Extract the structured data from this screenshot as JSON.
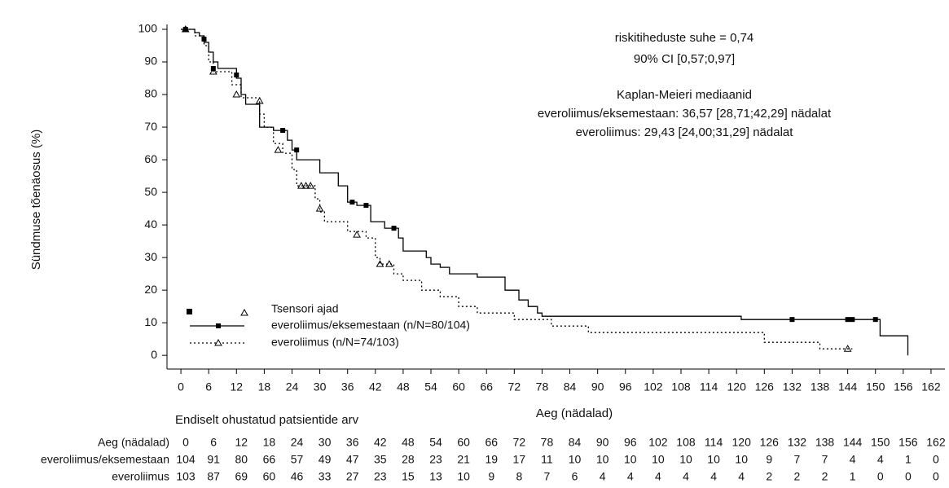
{
  "chart_data": {
    "type": "line",
    "y_label": "Sündmuse tõenäosus (%)",
    "x_label": "Aeg (nädalad)",
    "xlim": [
      -3,
      165
    ],
    "ylim": [
      -4.2,
      101.5
    ],
    "xticks": [
      0,
      6,
      12,
      18,
      24,
      30,
      36,
      42,
      48,
      54,
      60,
      66,
      72,
      78,
      84,
      90,
      96,
      102,
      108,
      114,
      120,
      126,
      132,
      138,
      144,
      150,
      156,
      162
    ],
    "yticks": [
      0,
      10,
      20,
      30,
      40,
      50,
      60,
      70,
      80,
      90,
      100
    ],
    "annotations": [
      "riskitiheduste suhe = 0,74",
      "90% CI [0,57;0,97]",
      "Kaplan-Meieri mediaanid",
      "everoliimus/eksemestaan: 36,57 [28,71;42,29] nädalat",
      "everoliimus: 29,43 [24,00;31,29] nädalat"
    ],
    "legend_title": "Tsensori ajad",
    "series": [
      {
        "name": "everoliimus/eksemestaan (n/N=80/104)",
        "color": "#000000",
        "dashed": false,
        "marker": "square",
        "x": [
          0,
          3,
          3,
          4,
          4,
          5,
          5,
          6,
          6,
          7,
          7,
          8,
          8,
          12,
          12,
          13,
          13,
          14,
          14,
          17,
          17,
          20,
          20,
          23,
          23,
          24,
          24,
          25,
          25,
          30,
          30,
          34,
          34,
          36,
          36,
          38,
          38,
          41,
          41,
          44,
          44,
          47,
          47,
          48,
          48,
          53,
          53,
          54,
          54,
          56,
          56,
          58,
          58,
          64,
          64,
          70,
          70,
          73,
          73,
          75,
          75,
          77,
          77,
          78,
          78,
          121,
          121,
          151,
          151,
          157,
          157
        ],
        "values": [
          100,
          100,
          99,
          99,
          98,
          98,
          96,
          96,
          93,
          93,
          90,
          90,
          88,
          88,
          85,
          85,
          80,
          80,
          77,
          77,
          70,
          70,
          69,
          69,
          66,
          66,
          63,
          63,
          60,
          60,
          56,
          56,
          52,
          52,
          47,
          47,
          46,
          46,
          41,
          41,
          39,
          39,
          36,
          36,
          32,
          32,
          30,
          30,
          28,
          28,
          27,
          27,
          25,
          25,
          24,
          24,
          20,
          20,
          17,
          17,
          15,
          15,
          13,
          13,
          12,
          12,
          11,
          11,
          6,
          6,
          0
        ],
        "censored": {
          "x": [
            1,
            5,
            7,
            12,
            22,
            25,
            37,
            40,
            46,
            132,
            144,
            145,
            150
          ],
          "values": [
            100,
            97,
            88,
            86,
            69,
            63,
            47,
            46,
            39,
            11,
            11,
            11,
            11
          ]
        }
      },
      {
        "name": "everoliimus (n/N=74/103)",
        "color": "#000000",
        "dashed": true,
        "marker": "triangle",
        "x": [
          0,
          3,
          3,
          5,
          5,
          6,
          6,
          7,
          7,
          11,
          11,
          13,
          13,
          17,
          17,
          18,
          18,
          20,
          20,
          22,
          22,
          24,
          24,
          25,
          25,
          29,
          29,
          30,
          30,
          31,
          31,
          36,
          36,
          40,
          40,
          42,
          42,
          43,
          43,
          46,
          46,
          48,
          48,
          52,
          52,
          56,
          56,
          60,
          60,
          64,
          64,
          72,
          72,
          80,
          80,
          88,
          88,
          126,
          126,
          138,
          138,
          145
        ],
        "values": [
          100,
          100,
          98,
          98,
          95,
          95,
          90,
          90,
          87,
          87,
          83,
          83,
          79,
          79,
          74,
          74,
          70,
          70,
          65,
          65,
          62,
          62,
          57,
          57,
          52,
          52,
          48,
          48,
          44,
          44,
          41,
          41,
          38,
          38,
          36,
          36,
          30,
          30,
          28,
          28,
          25,
          25,
          23,
          23,
          20,
          20,
          18,
          18,
          15,
          15,
          13,
          13,
          11,
          11,
          9,
          9,
          7,
          7,
          4,
          4,
          2,
          2
        ],
        "censored": {
          "x": [
            1,
            7,
            12,
            17,
            21,
            26,
            27,
            28,
            30,
            38,
            43,
            45,
            144
          ],
          "values": [
            100,
            87,
            80,
            78,
            63,
            52,
            52,
            52,
            45,
            37,
            28,
            28,
            2
          ]
        }
      }
    ],
    "risk_table": {
      "title": "Endiselt ohustatud patsientide arv",
      "header_label": "Aeg (nädalad)",
      "times": [
        0,
        6,
        12,
        18,
        24,
        30,
        36,
        42,
        48,
        54,
        60,
        66,
        72,
        78,
        84,
        90,
        96,
        102,
        108,
        114,
        120,
        126,
        132,
        138,
        144,
        150,
        156,
        162
      ],
      "rows": [
        {
          "label": "everoliimus/eksemestaan",
          "values": [
            104,
            91,
            80,
            66,
            57,
            49,
            47,
            35,
            28,
            23,
            21,
            19,
            17,
            11,
            10,
            10,
            10,
            10,
            10,
            10,
            10,
            9,
            7,
            7,
            4,
            4,
            1,
            0
          ]
        },
        {
          "label": "everoliimus",
          "values": [
            103,
            87,
            69,
            60,
            46,
            33,
            27,
            23,
            15,
            13,
            10,
            9,
            8,
            7,
            6,
            4,
            4,
            4,
            4,
            4,
            4,
            2,
            2,
            2,
            1,
            0,
            0,
            0
          ]
        }
      ]
    }
  }
}
